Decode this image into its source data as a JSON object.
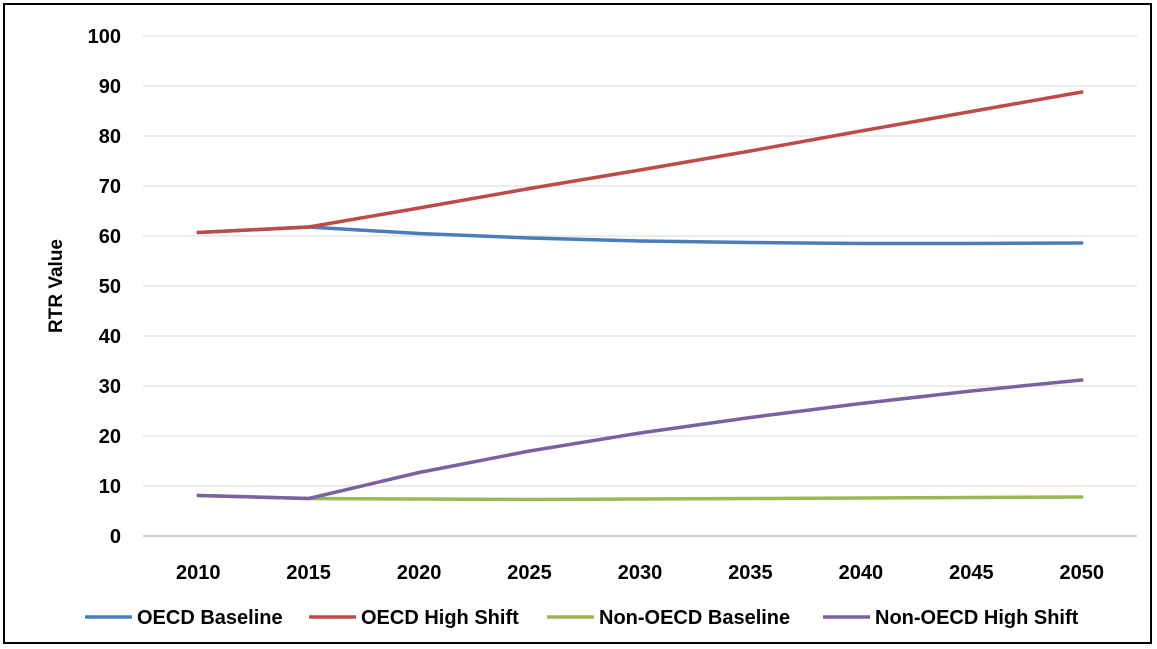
{
  "chart_data": {
    "type": "line",
    "title": "",
    "xlabel": "",
    "ylabel": "RTR Value",
    "ylim": [
      0,
      100
    ],
    "yticks": [
      0,
      10,
      20,
      30,
      40,
      50,
      60,
      70,
      80,
      90,
      100
    ],
    "x": [
      2010,
      2015,
      2020,
      2025,
      2030,
      2035,
      2040,
      2045,
      2050
    ],
    "grid": true,
    "legend_position": "bottom",
    "series": [
      {
        "name": "OECD Baseline",
        "color": "#4a7ebb",
        "values": [
          60.7,
          61.8,
          60.5,
          59.6,
          59.0,
          58.7,
          58.5,
          58.5,
          58.6
        ]
      },
      {
        "name": "OECD High Shift",
        "color": "#be4b48",
        "values": [
          60.7,
          61.8,
          65.6,
          69.5,
          73.2,
          77.0,
          81.0,
          84.9,
          88.8
        ]
      },
      {
        "name": "Non-OECD Baseline",
        "color": "#98b954",
        "values": [
          8.1,
          7.5,
          7.4,
          7.3,
          7.4,
          7.5,
          7.6,
          7.7,
          7.8
        ]
      },
      {
        "name": "Non-OECD High Shift",
        "color": "#7d60a0",
        "values": [
          8.1,
          7.5,
          12.7,
          17.0,
          20.6,
          23.7,
          26.5,
          29.0,
          31.2
        ]
      }
    ]
  }
}
